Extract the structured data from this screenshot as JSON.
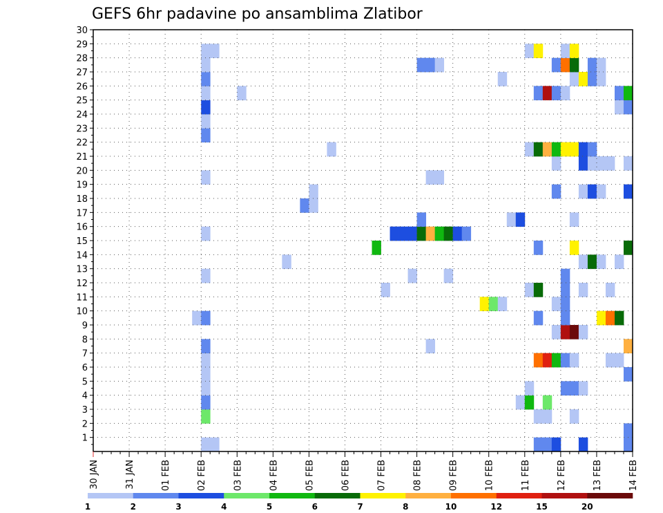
{
  "chart_data": {
    "type": "heatmap",
    "title": "GEFS 6hr padavine po ansamblima Zlatibor",
    "xlabel": "",
    "ylabel": "",
    "x_tick_labels": [
      "30 JAN",
      "31 JAN",
      "01 FEB",
      "02 FEB",
      "03 FEB",
      "04 FEB",
      "05 FEB",
      "06 FEB",
      "07 FEB",
      "08 FEB",
      "09 FEB",
      "10 FEB",
      "11 FEB",
      "12 FEB",
      "13 FEB",
      "14 FEB"
    ],
    "x_range_days": [
      0,
      15
    ],
    "x_step_hours": 6,
    "y_tick_labels": [
      "1",
      "2",
      "3",
      "4",
      "5",
      "6",
      "7",
      "8",
      "9",
      "10",
      "11",
      "12",
      "13",
      "14",
      "15",
      "16",
      "17",
      "18",
      "19",
      "20",
      "21",
      "22",
      "23",
      "24",
      "25",
      "26",
      "27",
      "28",
      "29",
      "30"
    ],
    "y_range": [
      0,
      30
    ],
    "grid": true,
    "colorbar": {
      "levels": [
        "1",
        "2",
        "3",
        "4",
        "5",
        "6",
        "7",
        "8",
        "10",
        "12",
        "15",
        "20"
      ],
      "colors": [
        "#b4c6f5",
        "#6088ee",
        "#1d4ee0",
        "#6de86a",
        "#10b810",
        "#086b08",
        "#fff200",
        "#ffb040",
        "#ff7000",
        "#e02010",
        "#b01010",
        "#6b0a0a"
      ]
    },
    "cells": [
      [
        3.0,
        0,
        0
      ],
      [
        3.25,
        0,
        0
      ],
      [
        12.25,
        0,
        1
      ],
      [
        12.5,
        0,
        1
      ],
      [
        12.75,
        0,
        2
      ],
      [
        14.75,
        0,
        1
      ],
      [
        13.5,
        0,
        2
      ],
      [
        14.75,
        1,
        1
      ],
      [
        3.0,
        2,
        3
      ],
      [
        12.25,
        2,
        0
      ],
      [
        12.5,
        2,
        0
      ],
      [
        13.25,
        2,
        0
      ],
      [
        3.0,
        3,
        1
      ],
      [
        11.75,
        3,
        0
      ],
      [
        12.0,
        3,
        4
      ],
      [
        12.5,
        3,
        3
      ],
      [
        3.0,
        4,
        0
      ],
      [
        12.0,
        4,
        0
      ],
      [
        13.0,
        4,
        1
      ],
      [
        13.25,
        4,
        1
      ],
      [
        13.5,
        4,
        0
      ],
      [
        3.0,
        5,
        0
      ],
      [
        14.75,
        5,
        1
      ],
      [
        3.0,
        6,
        0
      ],
      [
        12.25,
        6,
        8
      ],
      [
        12.5,
        6,
        9
      ],
      [
        12.75,
        6,
        4
      ],
      [
        13.0,
        6,
        1
      ],
      [
        13.25,
        6,
        0
      ],
      [
        14.25,
        6,
        0
      ],
      [
        14.5,
        6,
        0
      ],
      [
        3.0,
        7,
        1
      ],
      [
        9.25,
        7,
        0
      ],
      [
        14.75,
        7,
        7
      ],
      [
        12.75,
        8,
        0
      ],
      [
        13.0,
        8,
        10
      ],
      [
        13.25,
        8,
        11
      ],
      [
        13.5,
        8,
        0
      ],
      [
        2.75,
        9,
        0
      ],
      [
        3.0,
        9,
        1
      ],
      [
        12.25,
        9,
        1
      ],
      [
        13.0,
        9,
        1
      ],
      [
        14.0,
        9,
        6
      ],
      [
        14.25,
        9,
        8
      ],
      [
        14.5,
        9,
        5
      ],
      [
        10.75,
        10,
        6
      ],
      [
        11.0,
        10,
        3
      ],
      [
        11.25,
        10,
        0
      ],
      [
        12.75,
        10,
        0
      ],
      [
        13.0,
        10,
        1
      ],
      [
        8.0,
        11,
        0
      ],
      [
        12.0,
        11,
        0
      ],
      [
        12.25,
        11,
        5
      ],
      [
        13.0,
        11,
        1
      ],
      [
        13.5,
        11,
        0
      ],
      [
        14.25,
        11,
        0
      ],
      [
        3.0,
        12,
        0
      ],
      [
        8.75,
        12,
        0
      ],
      [
        9.75,
        12,
        0
      ],
      [
        13.0,
        12,
        1
      ],
      [
        5.25,
        13,
        0
      ],
      [
        13.5,
        13,
        0
      ],
      [
        13.75,
        13,
        5
      ],
      [
        14.0,
        13,
        0
      ],
      [
        14.5,
        13,
        0
      ],
      [
        7.75,
        14,
        4
      ],
      [
        12.25,
        14,
        1
      ],
      [
        13.25,
        14,
        6
      ],
      [
        14.75,
        14,
        5
      ],
      [
        3.0,
        15,
        0
      ],
      [
        8.25,
        15,
        2
      ],
      [
        8.5,
        15,
        2
      ],
      [
        8.75,
        15,
        2
      ],
      [
        9.0,
        15,
        5
      ],
      [
        9.25,
        15,
        7
      ],
      [
        9.5,
        15,
        4
      ],
      [
        9.75,
        15,
        5
      ],
      [
        10.0,
        15,
        2
      ],
      [
        10.25,
        15,
        1
      ],
      [
        9.0,
        16,
        1
      ],
      [
        11.5,
        16,
        0
      ],
      [
        11.75,
        16,
        2
      ],
      [
        13.25,
        16,
        0
      ],
      [
        5.75,
        17,
        1
      ],
      [
        6.0,
        17,
        0
      ],
      [
        6.0,
        18,
        0
      ],
      [
        12.75,
        18,
        1
      ],
      [
        13.5,
        18,
        0
      ],
      [
        13.75,
        18,
        2
      ],
      [
        14.0,
        18,
        0
      ],
      [
        14.75,
        18,
        2
      ],
      [
        3.0,
        19,
        0
      ],
      [
        9.25,
        19,
        0
      ],
      [
        9.5,
        19,
        0
      ],
      [
        12.75,
        20,
        0
      ],
      [
        13.5,
        20,
        2
      ],
      [
        13.75,
        20,
        0
      ],
      [
        14.0,
        20,
        0
      ],
      [
        14.25,
        20,
        0
      ],
      [
        14.75,
        20,
        0
      ],
      [
        6.5,
        21,
        0
      ],
      [
        12.0,
        21,
        0
      ],
      [
        12.25,
        21,
        5
      ],
      [
        12.5,
        21,
        7
      ],
      [
        12.75,
        21,
        4
      ],
      [
        13.0,
        21,
        6
      ],
      [
        13.25,
        21,
        6
      ],
      [
        13.5,
        21,
        2
      ],
      [
        13.75,
        21,
        1
      ],
      [
        3.0,
        22,
        1
      ],
      [
        3.0,
        23,
        0
      ],
      [
        3.0,
        24,
        2
      ],
      [
        14.5,
        24,
        0
      ],
      [
        14.75,
        24,
        1
      ],
      [
        3.0,
        25,
        0
      ],
      [
        4.0,
        25,
        0
      ],
      [
        12.25,
        25,
        1
      ],
      [
        12.5,
        25,
        10
      ],
      [
        12.75,
        25,
        1
      ],
      [
        13.0,
        25,
        0
      ],
      [
        14.5,
        25,
        1
      ],
      [
        14.75,
        25,
        4
      ],
      [
        3.0,
        26,
        1
      ],
      [
        11.25,
        26,
        0
      ],
      [
        13.25,
        26,
        0
      ],
      [
        13.5,
        26,
        6
      ],
      [
        13.75,
        26,
        1
      ],
      [
        14.0,
        26,
        0
      ],
      [
        3.0,
        27,
        0
      ],
      [
        9.0,
        27,
        1
      ],
      [
        9.25,
        27,
        1
      ],
      [
        9.5,
        27,
        0
      ],
      [
        12.75,
        27,
        1
      ],
      [
        13.0,
        27,
        8
      ],
      [
        13.25,
        27,
        5
      ],
      [
        13.75,
        27,
        1
      ],
      [
        14.0,
        27,
        0
      ],
      [
        3.0,
        28,
        0
      ],
      [
        3.25,
        28,
        0
      ],
      [
        12.0,
        28,
        0
      ],
      [
        12.25,
        28,
        6
      ],
      [
        13.0,
        28,
        0
      ],
      [
        13.25,
        28,
        6
      ]
    ]
  }
}
